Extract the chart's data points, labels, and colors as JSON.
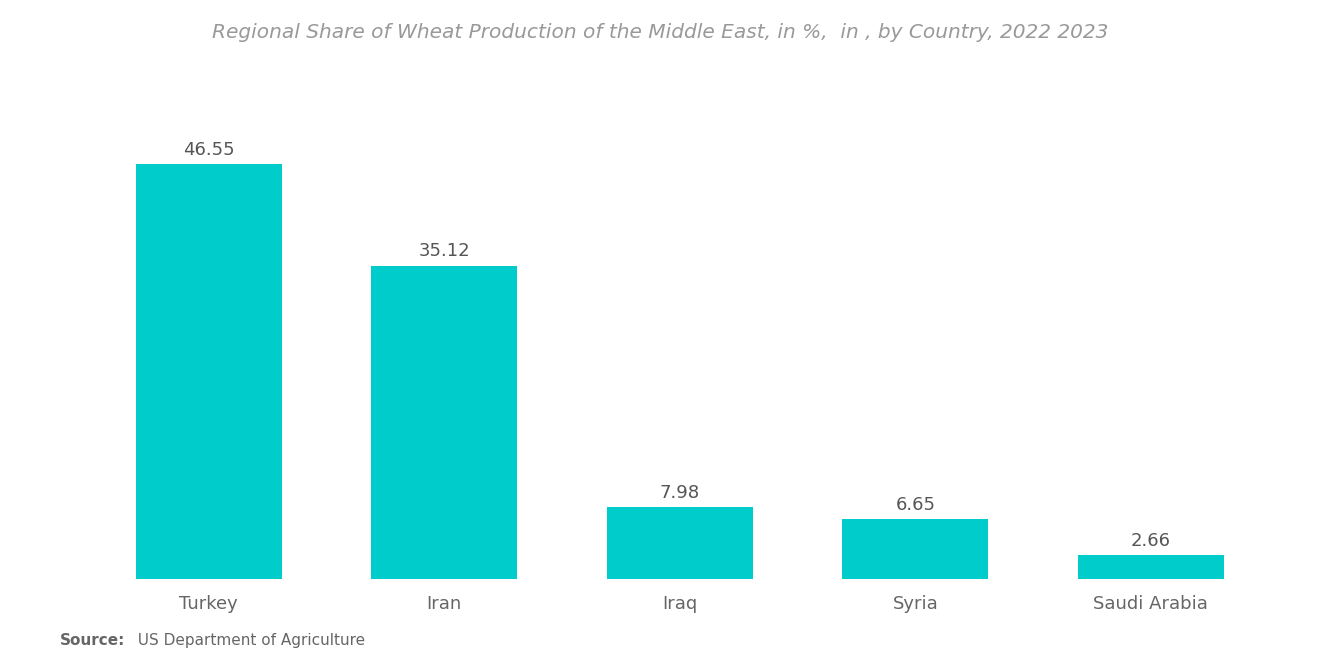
{
  "title": "Regional Share of Wheat Production of the Middle East, in %,  in , by Country, 2022 2023",
  "categories": [
    "Turkey",
    "Iran",
    "Iraq",
    "Syria",
    "Saudi Arabia"
  ],
  "values": [
    46.55,
    35.12,
    7.98,
    6.65,
    2.66
  ],
  "bar_color": "#00CCCC",
  "background_color": "#ffffff",
  "title_color": "#999999",
  "label_color": "#666666",
  "value_color": "#555555",
  "source_bold": "Source:",
  "source_rest": "  US Department of Agriculture",
  "title_fontsize": 14.5,
  "label_fontsize": 13,
  "value_fontsize": 13,
  "source_fontsize": 11,
  "ylim": [
    0,
    56
  ],
  "bar_width": 0.62,
  "xlim": [
    -0.55,
    4.55
  ]
}
